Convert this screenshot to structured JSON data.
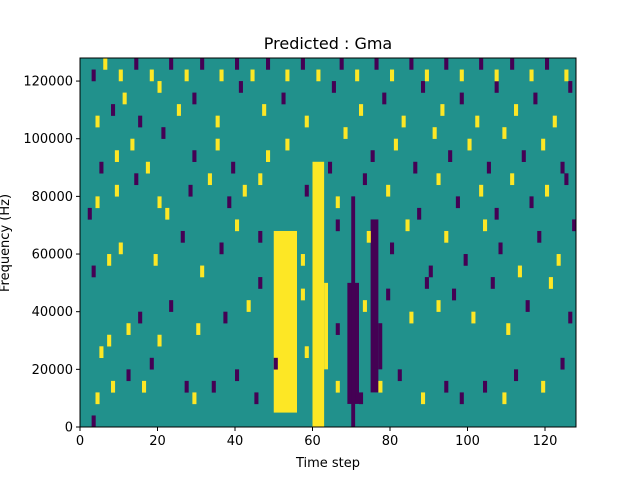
{
  "chart_data": {
    "type": "heatmap",
    "title": "Predicted : Gma",
    "xlabel": "Time step",
    "ylabel": "Frequency (Hz)",
    "xlim": [
      0,
      128
    ],
    "ylim": [
      0,
      128000
    ],
    "x_ticks": [
      0,
      20,
      40,
      60,
      80,
      100,
      120
    ],
    "y_ticks": [
      0,
      20000,
      40000,
      60000,
      80000,
      100000,
      120000
    ],
    "x_tick_labels": [
      "0",
      "20",
      "40",
      "60",
      "80",
      "100",
      "120"
    ],
    "y_tick_labels": [
      "0",
      "20000",
      "40000",
      "60000",
      "80000",
      "100000",
      "120000"
    ],
    "grid": false,
    "n_columns": 128,
    "n_rows": 32,
    "background_value": 0,
    "colors": {
      "low": "#440154",
      "mid": "#21918c",
      "high": "#fde725"
    },
    "legend": "none",
    "dense_bands": [
      {
        "value": 1,
        "x": [
          50,
          56
        ],
        "y": [
          5000,
          68000
        ]
      },
      {
        "value": 1,
        "x": [
          60,
          63
        ],
        "y": [
          0,
          92000
        ]
      },
      {
        "value": 1,
        "x": [
          63,
          64
        ],
        "y": [
          20000,
          50000
        ]
      },
      {
        "value": -1,
        "x": [
          69,
          72
        ],
        "y": [
          8000,
          50000
        ]
      },
      {
        "value": -1,
        "x": [
          70,
          71
        ],
        "y": [
          0,
          80000
        ]
      },
      {
        "value": -1,
        "x": [
          75,
          77
        ],
        "y": [
          12000,
          72000
        ]
      },
      {
        "value": -1,
        "x": [
          77,
          78
        ],
        "y": [
          20000,
          36000
        ]
      }
    ],
    "cells": [
      [
        3,
        0,
        -1
      ],
      [
        4,
        2,
        1
      ],
      [
        8,
        3,
        1
      ],
      [
        12,
        4,
        -1
      ],
      [
        16,
        3,
        1
      ],
      [
        18,
        5,
        -1
      ],
      [
        27,
        3,
        -1
      ],
      [
        29,
        2,
        1
      ],
      [
        34,
        3,
        -1
      ],
      [
        40,
        4,
        -1
      ],
      [
        45,
        2,
        -1
      ],
      [
        50,
        5,
        -1
      ],
      [
        58,
        6,
        1
      ],
      [
        66,
        3,
        1
      ],
      [
        72,
        2,
        -1
      ],
      [
        77,
        3,
        1
      ],
      [
        82,
        4,
        -1
      ],
      [
        88,
        2,
        1
      ],
      [
        94,
        3,
        -1
      ],
      [
        98,
        2,
        -1
      ],
      [
        104,
        3,
        -1
      ],
      [
        109,
        2,
        1
      ],
      [
        112,
        4,
        -1
      ],
      [
        119,
        3,
        1
      ],
      [
        124,
        5,
        -1
      ],
      [
        5,
        6,
        1
      ],
      [
        7,
        7,
        1
      ],
      [
        12,
        8,
        1
      ],
      [
        15,
        9,
        -1
      ],
      [
        20,
        7,
        1
      ],
      [
        23,
        10,
        -1
      ],
      [
        30,
        8,
        1
      ],
      [
        37,
        9,
        -1
      ],
      [
        43,
        10,
        1
      ],
      [
        46,
        12,
        -1
      ],
      [
        57,
        11,
        1
      ],
      [
        66,
        8,
        -1
      ],
      [
        73,
        10,
        1
      ],
      [
        79,
        11,
        -1
      ],
      [
        85,
        9,
        1
      ],
      [
        89,
        12,
        -1
      ],
      [
        92,
        10,
        1
      ],
      [
        96,
        11,
        -1
      ],
      [
        101,
        9,
        1
      ],
      [
        106,
        12,
        -1
      ],
      [
        110,
        8,
        1
      ],
      [
        115,
        10,
        -1
      ],
      [
        121,
        12,
        1
      ],
      [
        126,
        9,
        -1
      ],
      [
        3,
        13,
        -1
      ],
      [
        7,
        14,
        1
      ],
      [
        10,
        15,
        1
      ],
      [
        19,
        14,
        1
      ],
      [
        26,
        16,
        -1
      ],
      [
        31,
        13,
        1
      ],
      [
        36,
        15,
        -1
      ],
      [
        40,
        17,
        1
      ],
      [
        46,
        16,
        -1
      ],
      [
        57,
        14,
        1
      ],
      [
        66,
        17,
        -1
      ],
      [
        74,
        16,
        1
      ],
      [
        80,
        15,
        -1
      ],
      [
        84,
        17,
        1
      ],
      [
        90,
        13,
        -1
      ],
      [
        94,
        16,
        1
      ],
      [
        99,
        14,
        -1
      ],
      [
        104,
        17,
        1
      ],
      [
        108,
        15,
        -1
      ],
      [
        113,
        13,
        1
      ],
      [
        118,
        16,
        -1
      ],
      [
        123,
        14,
        1
      ],
      [
        127,
        17,
        -1
      ],
      [
        2,
        18,
        -1
      ],
      [
        4,
        19,
        1
      ],
      [
        9,
        20,
        1
      ],
      [
        14,
        21,
        -1
      ],
      [
        20,
        19,
        1
      ],
      [
        22,
        18,
        1
      ],
      [
        28,
        20,
        -1
      ],
      [
        33,
        21,
        1
      ],
      [
        38,
        19,
        -1
      ],
      [
        42,
        20,
        1
      ],
      [
        46,
        21,
        1
      ],
      [
        58,
        20,
        -1
      ],
      [
        66,
        19,
        1
      ],
      [
        73,
        21,
        -1
      ],
      [
        79,
        20,
        1
      ],
      [
        87,
        18,
        -1
      ],
      [
        92,
        21,
        1
      ],
      [
        97,
        19,
        -1
      ],
      [
        103,
        20,
        1
      ],
      [
        107,
        18,
        -1
      ],
      [
        111,
        21,
        1
      ],
      [
        116,
        19,
        -1
      ],
      [
        120,
        20,
        1
      ],
      [
        125,
        21,
        -1
      ],
      [
        5,
        22,
        -1
      ],
      [
        9,
        23,
        1
      ],
      [
        13,
        24,
        1
      ],
      [
        17,
        22,
        1
      ],
      [
        21,
        25,
        -1
      ],
      [
        29,
        23,
        -1
      ],
      [
        35,
        24,
        1
      ],
      [
        39,
        22,
        -1
      ],
      [
        48,
        23,
        1
      ],
      [
        53,
        24,
        1
      ],
      [
        64,
        22,
        -1
      ],
      [
        68,
        25,
        1
      ],
      [
        75,
        23,
        -1
      ],
      [
        81,
        24,
        1
      ],
      [
        86,
        22,
        -1
      ],
      [
        91,
        25,
        1
      ],
      [
        95,
        23,
        -1
      ],
      [
        100,
        24,
        1
      ],
      [
        105,
        22,
        -1
      ],
      [
        109,
        25,
        1
      ],
      [
        114,
        23,
        -1
      ],
      [
        119,
        24,
        1
      ],
      [
        124,
        22,
        -1
      ],
      [
        4,
        26,
        1
      ],
      [
        8,
        27,
        -1
      ],
      [
        11,
        28,
        1
      ],
      [
        15,
        26,
        -1
      ],
      [
        20,
        29,
        1
      ],
      [
        25,
        27,
        1
      ],
      [
        29,
        28,
        -1
      ],
      [
        35,
        26,
        1
      ],
      [
        41,
        29,
        -1
      ],
      [
        47,
        27,
        1
      ],
      [
        52,
        28,
        -1
      ],
      [
        58,
        26,
        1
      ],
      [
        65,
        29,
        -1
      ],
      [
        72,
        27,
        1
      ],
      [
        78,
        28,
        -1
      ],
      [
        83,
        26,
        1
      ],
      [
        88,
        29,
        -1
      ],
      [
        93,
        27,
        1
      ],
      [
        98,
        28,
        -1
      ],
      [
        102,
        26,
        1
      ],
      [
        107,
        29,
        -1
      ],
      [
        112,
        27,
        1
      ],
      [
        117,
        28,
        -1
      ],
      [
        122,
        26,
        1
      ],
      [
        126,
        29,
        -1
      ],
      [
        3,
        30,
        -1
      ],
      [
        6,
        31,
        1
      ],
      [
        10,
        30,
        1
      ],
      [
        14,
        31,
        -1
      ],
      [
        18,
        30,
        1
      ],
      [
        23,
        31,
        -1
      ],
      [
        27,
        30,
        1
      ],
      [
        31,
        31,
        -1
      ],
      [
        36,
        30,
        1
      ],
      [
        40,
        31,
        -1
      ],
      [
        44,
        30,
        1
      ],
      [
        48,
        31,
        -1
      ],
      [
        53,
        30,
        1
      ],
      [
        57,
        31,
        -1
      ],
      [
        61,
        30,
        1
      ],
      [
        67,
        31,
        -1
      ],
      [
        71,
        30,
        1
      ],
      [
        76,
        31,
        -1
      ],
      [
        80,
        30,
        1
      ],
      [
        85,
        31,
        -1
      ],
      [
        89,
        30,
        1
      ],
      [
        94,
        31,
        -1
      ],
      [
        98,
        30,
        1
      ],
      [
        103,
        31,
        -1
      ],
      [
        107,
        30,
        1
      ],
      [
        111,
        31,
        -1
      ],
      [
        116,
        30,
        1
      ],
      [
        120,
        31,
        -1
      ],
      [
        125,
        30,
        1
      ]
    ]
  }
}
